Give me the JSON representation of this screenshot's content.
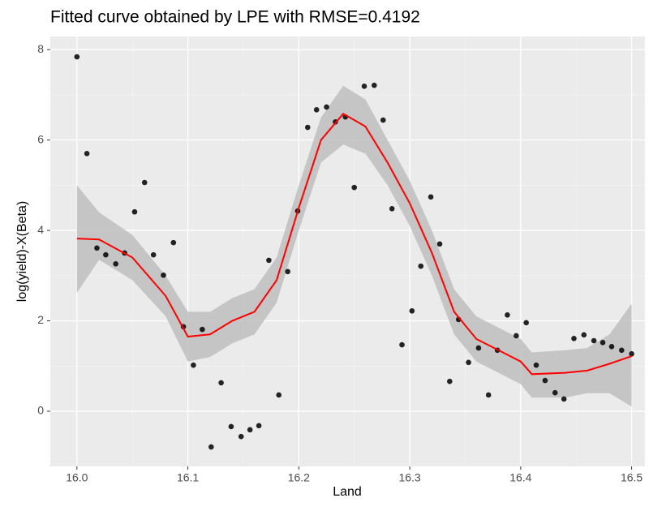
{
  "chart_data": {
    "type": "scatter",
    "title": "Fitted curve obtained by LPE with RMSE=0.4192",
    "x_label": "Land",
    "y_label": "log(yield)-X(Beta)",
    "xlim": [
      15.976,
      16.512
    ],
    "ylim": [
      -1.22,
      8.29
    ],
    "xticks": [
      {
        "value": 16,
        "label": "16.0"
      },
      16.1,
      16.2,
      16.3,
      16.4,
      16.5
    ],
    "yticks": [
      0,
      2,
      4,
      6,
      8
    ],
    "grid": true,
    "points": {
      "color": "#000000",
      "x": [
        16.0,
        16.009,
        16.018,
        16.026,
        16.035,
        16.043,
        16.052,
        16.061,
        16.069,
        16.078,
        16.087,
        16.096,
        16.105,
        16.113,
        16.121,
        16.13,
        16.139,
        16.148,
        16.156,
        16.164,
        16.173,
        16.182,
        16.19,
        16.199,
        16.208,
        16.216,
        16.225,
        16.233,
        16.242,
        16.25,
        16.259,
        16.268,
        16.276,
        16.284,
        16.293,
        16.302,
        16.31,
        16.319,
        16.327,
        16.336,
        16.344,
        16.353,
        16.362,
        16.371,
        16.379,
        16.388,
        16.396,
        16.405,
        16.414,
        16.422,
        16.431,
        16.439,
        16.448,
        16.457,
        16.466,
        16.474,
        16.482,
        16.491,
        16.5
      ],
      "y": [
        7.84,
        5.7,
        3.61,
        3.46,
        3.26,
        3.5,
        4.41,
        5.06,
        3.46,
        3.01,
        3.73,
        1.87,
        1.02,
        1.81,
        -0.79,
        0.63,
        -0.34,
        -0.56,
        -0.41,
        -0.32,
        3.34,
        0.36,
        3.09,
        4.43,
        6.28,
        6.67,
        6.73,
        6.4,
        6.51,
        4.95,
        7.19,
        7.21,
        6.44,
        4.48,
        1.47,
        2.22,
        3.21,
        4.74,
        3.7,
        0.66,
        2.03,
        1.08,
        1.4,
        0.36,
        1.35,
        2.13,
        1.67,
        1.96,
        1.02,
        0.68,
        0.41,
        0.27,
        1.61,
        1.69,
        1.56,
        1.52,
        1.43,
        1.35,
        1.27
      ]
    },
    "fit": {
      "color": "#ff0000",
      "band_color": "#bebebe",
      "x": [
        16.0,
        16.02,
        16.05,
        16.08,
        16.1,
        16.12,
        16.14,
        16.16,
        16.18,
        16.2,
        16.22,
        16.24,
        16.26,
        16.28,
        16.3,
        16.32,
        16.34,
        16.36,
        16.38,
        16.4,
        16.41,
        16.44,
        16.46,
        16.48,
        16.5
      ],
      "y": [
        3.82,
        3.8,
        3.4,
        2.55,
        1.65,
        1.7,
        2.0,
        2.2,
        2.9,
        4.5,
        6.0,
        6.58,
        6.3,
        5.5,
        4.6,
        3.5,
        2.2,
        1.6,
        1.35,
        1.1,
        0.82,
        0.85,
        0.9,
        1.05,
        1.22
      ],
      "lower": [
        2.62,
        3.35,
        2.9,
        2.1,
        1.1,
        1.2,
        1.5,
        1.7,
        2.4,
        4.0,
        5.5,
        5.9,
        5.7,
        5.0,
        4.1,
        3.0,
        1.7,
        1.1,
        0.85,
        0.6,
        0.3,
        0.3,
        0.4,
        0.4,
        0.1
      ],
      "upper": [
        5.0,
        4.4,
        3.9,
        3.0,
        2.2,
        2.2,
        2.5,
        2.7,
        3.4,
        5.0,
        6.5,
        7.2,
        6.9,
        6.0,
        5.1,
        4.0,
        2.7,
        2.1,
        1.85,
        1.6,
        1.3,
        1.35,
        1.4,
        1.7,
        2.38
      ]
    }
  }
}
